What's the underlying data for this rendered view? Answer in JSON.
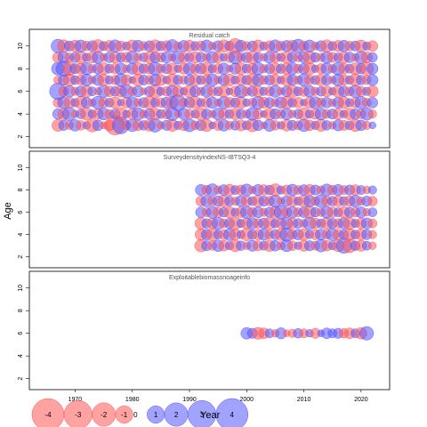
{
  "chart_data": {
    "type": "scatter",
    "subtype": "bubble",
    "ylabel": "Age",
    "xlabel": "Year",
    "xlim": [
      1962,
      2025
    ],
    "ylim": [
      1.5,
      11
    ],
    "xticks": [
      1970,
      1980,
      1990,
      2000,
      2010,
      2020
    ],
    "yticks": [
      2,
      4,
      6,
      8,
      10
    ],
    "colors": {
      "negative": "#ff5555",
      "positive": "#5555ff"
    },
    "legend": {
      "placement": "bottom-left",
      "values": [
        -4,
        -3,
        -2,
        -1,
        0,
        1,
        2,
        3,
        4
      ],
      "labels": [
        "-4",
        "-3",
        "-2",
        "-1",
        "0",
        "1",
        "2",
        "3",
        "4"
      ]
    },
    "panels": [
      {
        "title": "Residual catch",
        "ages": [
          3,
          4,
          5,
          6,
          7,
          8,
          9,
          10
        ],
        "years": [
          1967,
          2022
        ],
        "residuals": {
          "3": [
            -1.2,
            0.8,
            -0.5,
            1.1,
            -0.7,
            0.4,
            -1.5,
            0.9,
            -0.3,
            -1.0,
            -3.4,
            2.6,
            -0.6,
            1.3,
            -0.9,
            0.7,
            -1.1,
            1.6,
            -0.4,
            0.8,
            -1.2,
            0.5,
            -0.9,
            1.4,
            -0.6,
            0.9,
            -1.3,
            0.3,
            -0.8,
            1.1,
            -0.5,
            0.7,
            -1.0,
            0.6,
            -1.4,
            0.9,
            -0.3,
            1.2,
            -0.7,
            0.4,
            -1.1,
            0.8,
            -0.6,
            1.3,
            -0.9,
            0.5,
            -1.2,
            0.7,
            -0.4,
            1.0,
            -0.8,
            0.6,
            -1.3,
            0.9,
            -0.5,
            0.3
          ],
          "4": [
            0.9,
            -1.1,
            1.6,
            -0.4,
            0.7,
            -1.3,
            0.5,
            -0.9,
            1.2,
            -0.6,
            0.8,
            -1.4,
            0.4,
            -1.0,
            1.3,
            -0.5,
            0.9,
            -1.2,
            0.6,
            -0.8,
            1.5,
            -0.3,
            1.1,
            -0.7,
            0.5,
            -1.3,
            0.8,
            -0.4,
            1.2,
            -0.9,
            0.6,
            -1.1,
            0.7,
            -0.5,
            1.4,
            -0.8,
            0.3,
            -1.2,
            0.9,
            -0.6,
            1.1,
            -0.4,
            0.7,
            -1.3,
            0.5,
            -0.9,
            1.2,
            -0.6,
            0.8,
            -1.0,
            0.4,
            -1.1,
            0.9,
            -0.7,
            1.3,
            -0.5
          ],
          "5": [
            -0.7,
            1.2,
            -1.0,
            0.5,
            -1.3,
            0.9,
            -0.4,
            1.4,
            -0.8,
            0.6,
            -1.1,
            0.3,
            -0.9,
            1.2,
            -0.5,
            0.8,
            -1.4,
            0.6,
            -0.7,
            1.0,
            -1.2,
            2.3,
            -0.6,
            0.9,
            -1.3,
            0.5,
            -0.8,
            1.1,
            -0.4,
            1.3,
            -0.9,
            0.7,
            -1.2,
            0.4,
            -0.6,
            1.4,
            -1.0,
            0.8,
            -0.5,
            1.1,
            -1.3,
            0.6,
            -0.9,
            0.3,
            -1.1,
            1.2,
            -0.7,
            0.9,
            -0.4,
            1.0,
            -1.2,
            0.5,
            -0.8,
            1.3,
            -0.6,
            0.9
          ],
          "6": [
            2.5,
            -0.8,
            1.1,
            -0.5,
            0.9,
            -1.2,
            0.6,
            -0.4,
            1.3,
            -0.9,
            0.7,
            -1.1,
            1.5,
            -0.6,
            1.0,
            -0.3,
            0.8,
            -1.6,
            0.5,
            -0.7,
            1.2,
            -1.0,
            0.4,
            -1.3,
            0.9,
            -0.5,
            1.1,
            -0.8,
            0.6,
            -1.2,
            0.3,
            -0.9,
            1.4,
            -0.6,
            0.8,
            -1.1,
            0.5,
            -0.7,
            1.2,
            -0.4,
            0.9,
            -1.3,
            0.6,
            -0.8,
            1.1,
            -0.5,
            0.7,
            -1.0,
            0.4,
            -1.2,
            0.9,
            -0.6,
            1.3,
            -0.8,
            0.5,
            -1.1
          ],
          "7": [
            -0.5,
            0.9,
            -1.3,
            0.6,
            -0.8,
            1.2,
            -0.4,
            1.0,
            -1.1,
            0.5,
            -0.7,
            1.4,
            -0.9,
            0.3,
            -1.2,
            0.8,
            -0.6,
            1.1,
            -1.0,
            0.4,
            -1.3,
            0.7,
            -0.5,
            0.9,
            -1.1,
            0.6,
            -0.8,
            1.3,
            -0.4,
            1.0,
            -1.2,
            0.5,
            -0.9,
            0.7,
            -1.4,
            1.1,
            -0.6,
            0.8,
            -1.0,
            0.4,
            -1.2,
            0.9,
            -0.5,
            1.3,
            -0.7,
            0.6,
            -1.1,
            0.8,
            -0.4,
            1.2,
            -0.9,
            0.5,
            -1.3,
            0.7,
            -0.6,
            1.0
          ],
          "8": [
            1.4,
            2.1,
            -1.6,
            0.8,
            -1.0,
            1.3,
            -0.5,
            0.9,
            -1.2,
            0.6,
            -0.8,
            1.1,
            -0.4,
            1.0,
            -1.3,
            0.7,
            -0.9,
            1.5,
            -0.6,
            0.8,
            -1.1,
            0.4,
            -1.0,
            1.2,
            -0.7,
            0.9,
            -1.4,
            0.5,
            -0.8,
            1.1,
            -0.3,
            1.0,
            -1.2,
            0.6,
            -0.9,
            1.3,
            -0.5,
            0.8,
            -1.1,
            0.7,
            -1.0,
            1.2,
            -0.6,
            0.9,
            -1.3,
            0.4,
            -0.8,
            1.1,
            -0.5,
            1.4,
            -0.9,
            0.6,
            -1.2,
            0.8,
            -1.5,
            1.0
          ],
          "9": [
            -0.9,
            1.1,
            -0.6,
            0.8,
            -1.3,
            0.5,
            -1.0,
            1.2,
            -0.4,
            0.9,
            -1.1,
            0.7,
            -0.8,
            1.3,
            -0.5,
            0.6,
            -1.2,
            0.9,
            -0.7,
            1.0,
            -0.4,
            1.4,
            -0.9,
            0.6,
            -1.1,
            0.8,
            -0.5,
            1.2,
            -1.0,
            0.4,
            -0.8,
            1.5,
            -0.6,
            0.9,
            -1.3,
            0.7,
            -0.4,
            1.1,
            -0.9,
            0.5,
            -1.2,
            0.8,
            -0.6,
            1.0,
            -1.4,
            0.7,
            -0.5,
            1.2,
            -0.8,
            0.6,
            -1.1,
            0.9,
            -0.4,
            1.3,
            -1.0,
            0.7
          ],
          "10": [
            1.6,
            -1.3,
            0.8,
            -1.1,
            1.2,
            -0.7,
            0.9,
            -1.4,
            0.6,
            -1.0,
            1.3,
            -0.8,
            0.5,
            -1.2,
            1.1,
            -0.6,
            0.9,
            -1.3,
            0.7,
            -0.9,
            1.4,
            -0.5,
            1.0,
            -1.1,
            0.6,
            -0.8,
            1.2,
            -0.4,
            0.9,
            -1.3,
            0.7,
            -2.0,
            1.1,
            -0.6,
            0.8,
            -1.2,
            0.5,
            -0.9,
            1.3,
            -0.7,
            1.0,
            -1.1,
            1.6,
            -0.8,
            1.2,
            -0.5,
            0.9,
            -1.3,
            0.6,
            -1.0,
            1.1,
            -0.7,
            0.8,
            -1.2,
            0.5,
            -0.9
          ]
        }
      },
      {
        "title": "SurveydensityindexNS-IBTSQ3-4",
        "ages": [
          3,
          4,
          5,
          6,
          7,
          8
        ],
        "years": [
          1992,
          2022
        ],
        "residuals": {
          "3": [
            -1.3,
            0.8,
            -0.6,
            1.1,
            -0.9,
            0.5,
            -1.2,
            0.7,
            -0.4,
            1.0,
            -0.8,
            0.6,
            -1.1,
            0.9,
            -0.5,
            1.2,
            -0.7,
            0.4,
            -1.0,
            0.8,
            -0.6,
            1.3,
            -0.9,
            0.5,
            -1.2,
            2.0,
            -1.7,
            0.7,
            -1.0,
            0.6,
            -0.4
          ],
          "4": [
            -1.1,
            0.9,
            -1.4,
            0.6,
            -0.8,
            1.2,
            -1.0,
            0.5,
            -1.3,
            0.7,
            -0.9,
            1.1,
            -0.6,
            0.8,
            -1.2,
            1.6,
            -0.7,
            0.9,
            -1.1,
            0.5,
            -0.8,
            1.0,
            -0.6,
            1.3,
            -0.9,
            0.7,
            -1.2,
            0.6,
            -1.0,
            0.8,
            -0.5
          ],
          "5": [
            -1.2,
            0.7,
            -0.9,
            1.3,
            -0.6,
            0.8,
            -1.4,
            0.5,
            -1.0,
            1.1,
            -0.7,
            0.9,
            -1.3,
            0.6,
            -0.8,
            1.2,
            -1.0,
            0.7,
            -0.5,
            1.4,
            -0.9,
            0.6,
            -1.2,
            0.8,
            -0.7,
            1.1,
            -1.3,
            0.5,
            -0.9,
            1.0,
            -0.6
          ],
          "6": [
            0.9,
            -0.6,
            1.2,
            -0.8,
            0.7,
            -1.1,
            0.5,
            -0.9,
            1.3,
            -0.7,
            1.0,
            -0.5,
            0.8,
            -1.2,
            1.6,
            -0.8,
            1.1,
            -0.6,
            0.9,
            -1.3,
            0.7,
            -0.5,
            1.2,
            -0.9,
            0.6,
            -1.1,
            0.8,
            -0.7,
            1.0,
            -0.4,
            0.6
          ],
          "7": [
            -0.8,
            1.1,
            -0.6,
            0.9,
            -1.2,
            0.7,
            -0.5,
            1.0,
            -0.9,
            0.6,
            -1.1,
            0.8,
            -0.7,
            1.3,
            -0.4,
            0.9,
            -1.0,
            0.5,
            -1.2,
            1.1,
            -0.6,
            1.4,
            -0.8,
            0.7,
            -1.0,
            0.6,
            -0.9,
            1.2,
            -0.5,
            0.8,
            -0.7
          ],
          "8": [
            1.0,
            -0.7,
            1.3,
            -0.5,
            0.9,
            -1.1,
            0.6,
            -0.8,
            1.2,
            -0.4,
            1.0,
            -0.9,
            0.7,
            -1.3,
            0.5,
            -0.8,
            1.1,
            -0.6,
            0.9,
            -1.0,
            0.8,
            -0.5,
            1.2,
            -0.7,
            1.0,
            -0.6,
            0.8,
            -0.9,
            0.6,
            -0.4,
            0.5
          ]
        }
      },
      {
        "title": "Exploitablebiomassnoageinfo",
        "ages": [
          6
        ],
        "years": [
          2000,
          2021
        ],
        "residuals": {
          "6": [
            1.1,
            0.8,
            -1.2,
            -0.9,
            0.6,
            -0.4,
            1.0,
            -0.3,
            -0.5,
            0.7,
            -0.6,
            0.4,
            -0.8,
            0.3,
            0.9,
            0.6,
            0.8,
            -0.7,
            -0.9,
            0.6,
            -1.1,
            1.6
          ]
        }
      }
    ]
  }
}
